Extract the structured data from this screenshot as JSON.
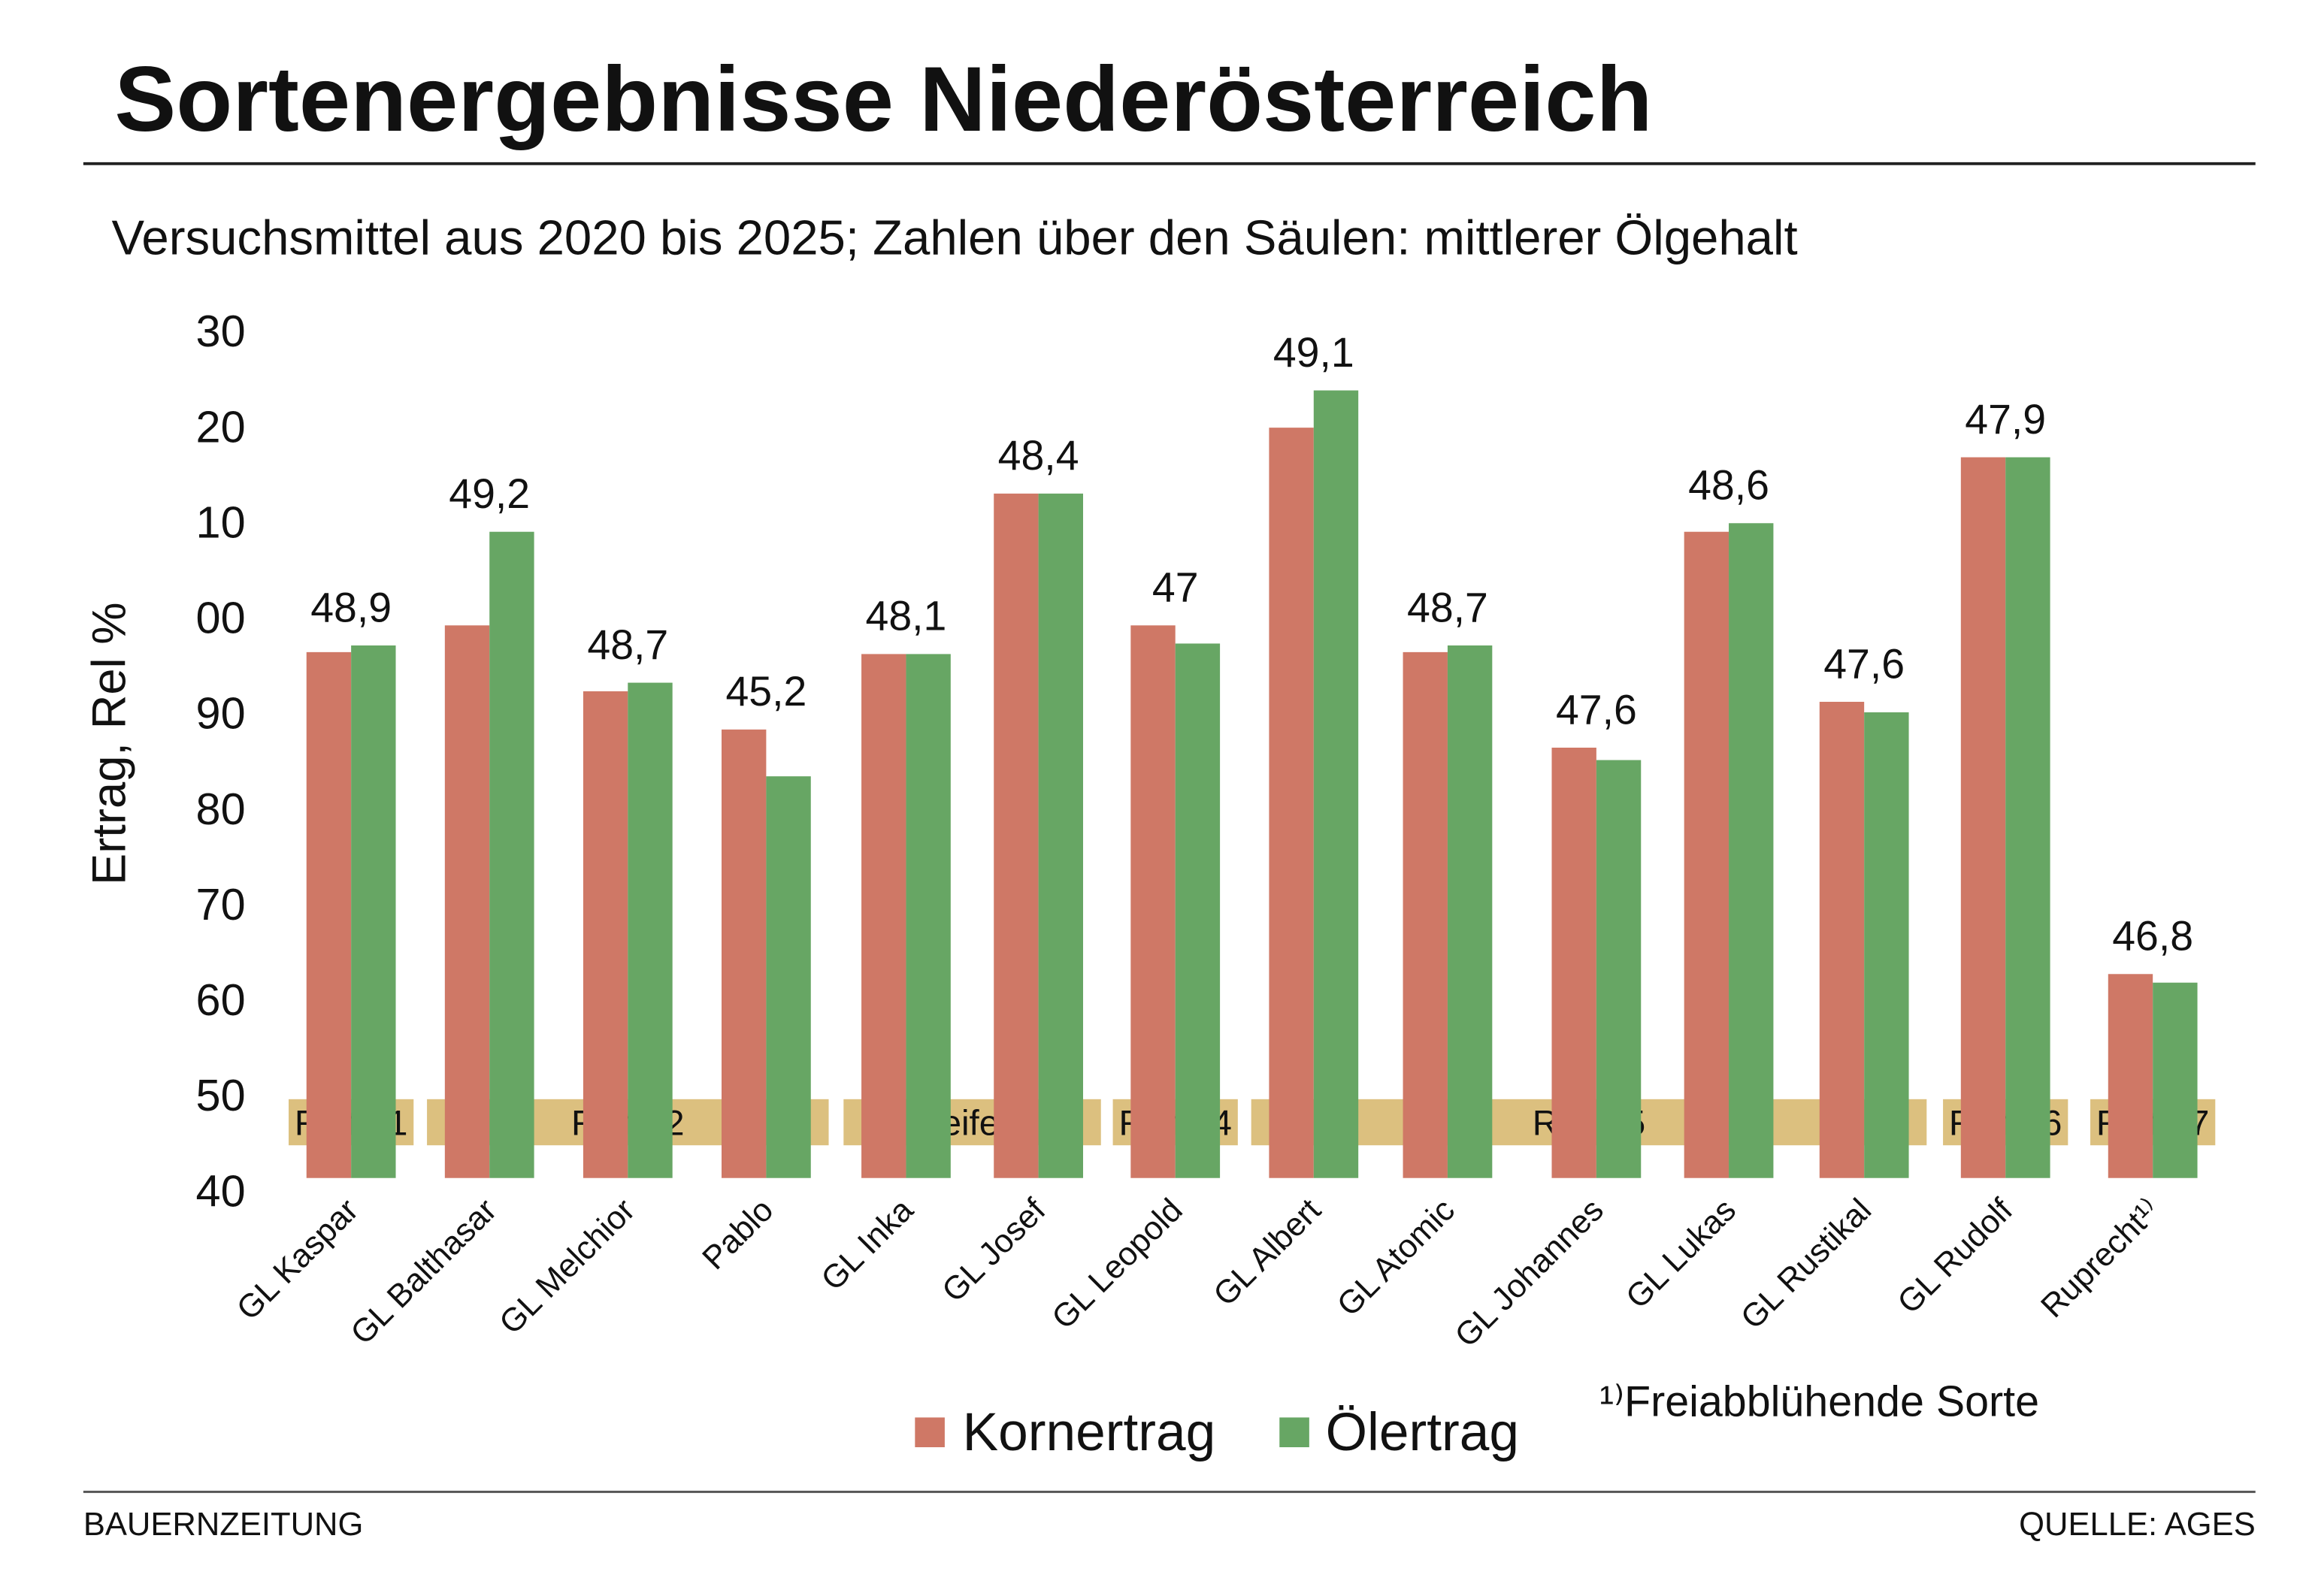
{
  "title": "Sortenergebnisse Niederösterreich",
  "subtitle": "Versuchsmittel aus 2020 bis 2025; Zahlen über den Säulen: mittlerer Ölgehalt",
  "footer": {
    "left": "BAUERNZEITUNG",
    "right": "QUELLE: AGES"
  },
  "footnote": "¹⁾Freiabblühende Sorte",
  "colors": {
    "Kornertrag": "#cf7866",
    "Ölertrag": "#67a664",
    "reife_band": "#dcc07f"
  },
  "chart_data": {
    "type": "bar",
    "ylabel": "Ertrag, Rel %",
    "ylim": [
      40,
      130
    ],
    "y_tick_labels": [
      "40",
      "50",
      "60",
      "70",
      "80",
      "90",
      "00",
      "10",
      "20",
      "30"
    ],
    "grid": false,
    "legend_position": "bottom",
    "categories": [
      "GL Kaspar",
      "GL Balthasar",
      "GL Melchior",
      "Pablo",
      "GL Inka",
      "GL Josef",
      "GL Leopold",
      "GL Albert",
      "GL Atomic",
      "GL Johannes",
      "GL Lukas",
      "GL Rustikal",
      "GL Rudolf",
      "Ruprecht¹⁾"
    ],
    "series": [
      {
        "name": "Kornertrag",
        "values": [
          96.3,
          99.1,
          92.2,
          88.2,
          96.1,
          112.9,
          99.1,
          119.8,
          96.3,
          86.3,
          108.9,
          91.1,
          116.7,
          62.6
        ]
      },
      {
        "name": "Ölertrag",
        "values": [
          97.0,
          108.9,
          93.1,
          83.3,
          96.1,
          112.9,
          97.2,
          123.7,
          97.0,
          85.0,
          109.8,
          90.0,
          116.7,
          61.7
        ]
      }
    ],
    "data_labels": [
      "48,9",
      "49,2",
      "48,7",
      "45,2",
      "48,1",
      "48,4",
      "47",
      "49,1",
      "48,7",
      "47,6",
      "48,6",
      "47,6",
      "47,9",
      "46,8"
    ],
    "groups": [
      {
        "label": "Reife 1",
        "from": 0,
        "to": 0
      },
      {
        "label": "Reife 2",
        "from": 1,
        "to": 3
      },
      {
        "label": "Reife 3",
        "from": 4,
        "to": 5
      },
      {
        "label": "Reife 4",
        "from": 6,
        "to": 6
      },
      {
        "label": "Reife 5",
        "from": 7,
        "to": 11
      },
      {
        "label": "Reife 6",
        "from": 12,
        "to": 12
      },
      {
        "label": "Reife 7",
        "from": 13,
        "to": 13
      }
    ]
  }
}
